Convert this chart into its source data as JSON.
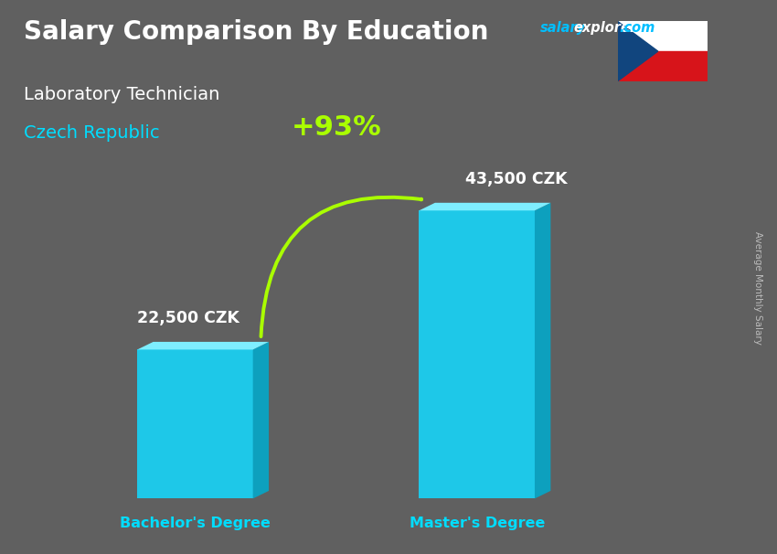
{
  "title": "Salary Comparison By Education",
  "subtitle_job": "Laboratory Technician",
  "subtitle_country": "Czech Republic",
  "categories": [
    "Bachelor's Degree",
    "Master's Degree"
  ],
  "values": [
    22500,
    43500
  ],
  "value_labels": [
    "22,500 CZK",
    "43,500 CZK"
  ],
  "bar_color_front": "#1EC8E8",
  "bar_color_top": "#7EEEFF",
  "bar_color_side": "#0DA0BE",
  "pct_label": "+93%",
  "pct_color": "#AAFF00",
  "ylabel_text": "Average Monthly Salary",
  "bg_color": "#606060",
  "title_color": "#FFFFFF",
  "subtitle_job_color": "#FFFFFF",
  "subtitle_country_color": "#00DDFF",
  "category_color": "#00DDFF",
  "value_color": "#FFFFFF",
  "website_salary_color": "#00BFFF",
  "website_rest_color": "#FFFFFF",
  "flag_blue": "#11457E",
  "flag_red": "#D7141A",
  "flag_white": "#FFFFFF"
}
